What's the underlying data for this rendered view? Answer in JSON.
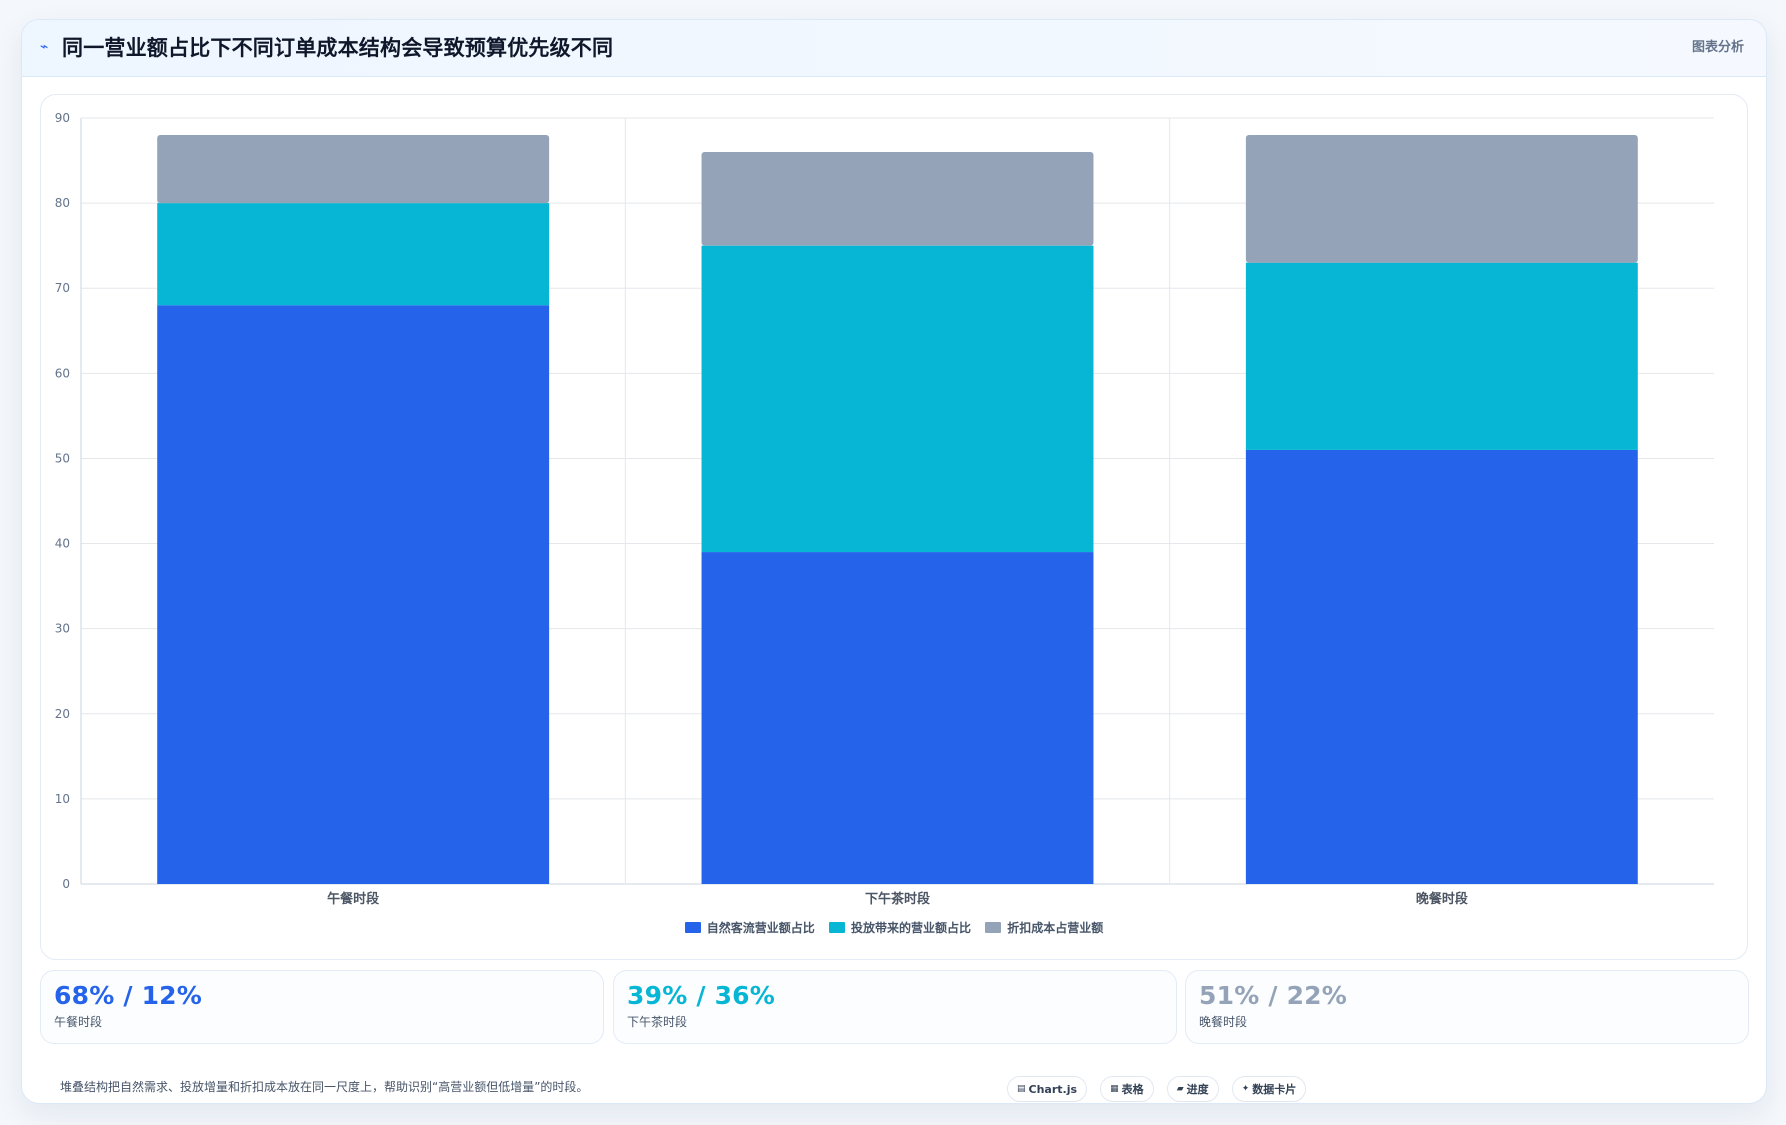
{
  "header": {
    "icon": "trend-line-icon",
    "title": "同一营业额占比下不同订单成本结构会导致预算优先级不同",
    "right_label": "图表分析"
  },
  "chart_data": {
    "type": "bar",
    "stacked": true,
    "categories": [
      "午餐时段",
      "下午茶时段",
      "晚餐时段"
    ],
    "series": [
      {
        "name": "自然客流营业额占比",
        "values": [
          68,
          39,
          51
        ],
        "color": "#2563eb"
      },
      {
        "name": "投放带来的营业额占比",
        "values": [
          12,
          36,
          22
        ],
        "color": "#06b6d4"
      },
      {
        "name": "折扣成本占营业额",
        "values": [
          8,
          11,
          15
        ],
        "color": "#94a3b8"
      }
    ],
    "ylim": [
      0,
      90
    ],
    "yticks": [
      0,
      10,
      20,
      30,
      40,
      50,
      60,
      70,
      80,
      90
    ],
    "grid": true,
    "legend_position": "bottom-center"
  },
  "stats": [
    {
      "value": "68% / 12%",
      "label": "午餐时段",
      "color": "#2563eb"
    },
    {
      "value": "39% / 36%",
      "label": "下午茶时段",
      "color": "#06b6d4"
    },
    {
      "value": "51% / 22%",
      "label": "晚餐时段",
      "color": "#94a3b8"
    }
  ],
  "footer": {
    "note": "堆叠结构把自然需求、投放增量和折扣成本放在同一尺度上，帮助识别“高营业额但低增量”的时段。"
  },
  "tags": [
    {
      "icon": "chart-icon",
      "glyph": "▤",
      "label": "Chart.js"
    },
    {
      "icon": "table-icon",
      "glyph": "▦",
      "label": "表格"
    },
    {
      "icon": "progress-icon",
      "glyph": "▰",
      "label": "进度"
    },
    {
      "icon": "data-card-icon",
      "glyph": "✦",
      "label": "数据卡片"
    }
  ]
}
